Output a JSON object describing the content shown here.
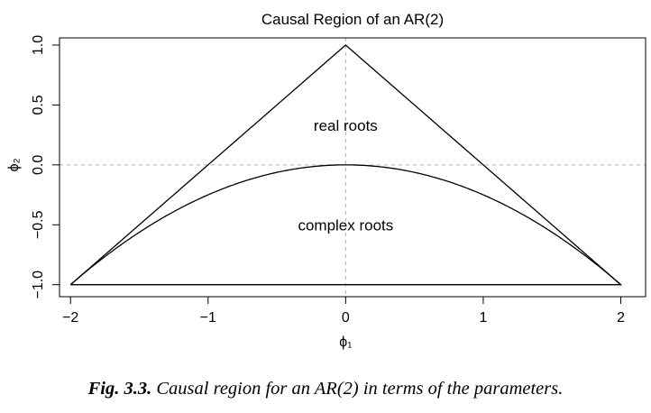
{
  "chart_data": {
    "type": "line",
    "title": "Causal Region of an AR(2)",
    "xlabel": "ϕ₁",
    "ylabel": "ϕ₂",
    "xlim": [
      -2.08,
      2.18
    ],
    "ylim": [
      -1.1,
      1.06
    ],
    "x_ticks": [
      -2,
      -1,
      0,
      1,
      2
    ],
    "x_tick_labels": [
      "−2",
      "−1",
      "0",
      "1",
      "2"
    ],
    "y_ticks": [
      -1.0,
      -0.5,
      0.0,
      0.5,
      1.0
    ],
    "y_tick_labels": [
      "−1.0",
      "−0.5",
      "0.0",
      "0.5",
      "1.0"
    ],
    "grid": false,
    "reference_lines": [
      {
        "orientation": "horizontal",
        "value": 0,
        "style": "dashed",
        "color": "#bfbfbf"
      },
      {
        "orientation": "vertical",
        "value": 0,
        "style": "dashed",
        "color": "#bfbfbf"
      }
    ],
    "series": [
      {
        "kind": "triangle",
        "x": [
          -2,
          0,
          2,
          -2
        ],
        "y": [
          -1,
          1,
          -1,
          -1
        ],
        "color": "#000000"
      },
      {
        "kind": "parabola",
        "x": [
          -2,
          -1.5,
          -1,
          -0.5,
          0,
          0.5,
          1,
          1.5,
          2
        ],
        "y": [
          -1,
          -0.5625,
          -0.25,
          -0.0625,
          0,
          -0.0625,
          -0.25,
          -0.5625,
          -1
        ],
        "color": "#000000"
      }
    ],
    "annotations": [
      {
        "text": "real roots",
        "x": 0,
        "y": 0.33
      },
      {
        "text": "complex roots",
        "x": 0,
        "y": -0.5
      }
    ]
  },
  "caption": {
    "label": "Fig. 3.3.",
    "text": " Causal region for an AR(2) in terms of the parameters."
  }
}
